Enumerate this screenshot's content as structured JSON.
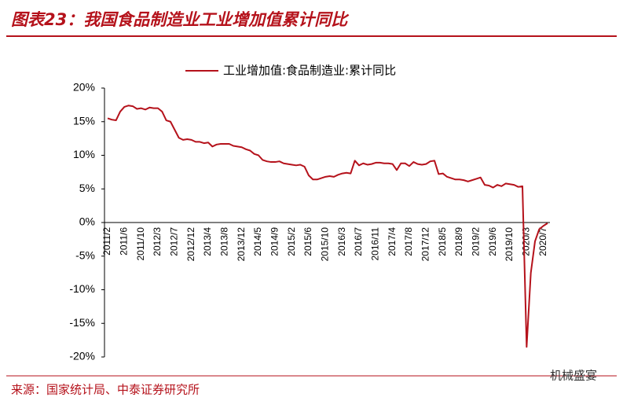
{
  "chart_data": {
    "type": "line",
    "title": "图表23：我国食品制造业工业增加值累计同比",
    "source": "来源：国家统计局、中泰证券研究所",
    "watermark": "机械盛宴",
    "categories": [
      "2011/2",
      null,
      null,
      null,
      "2011/6",
      null,
      null,
      null,
      "2011/10",
      null,
      null,
      null,
      "2012/3",
      null,
      null,
      null,
      "2012/7",
      null,
      null,
      null,
      "2012/12",
      null,
      null,
      null,
      "2013/4",
      null,
      null,
      null,
      "2013/8",
      null,
      null,
      null,
      "2013/12",
      null,
      null,
      null,
      "2014/5",
      null,
      null,
      null,
      "2014/9",
      null,
      null,
      null,
      "2015/2",
      null,
      null,
      null,
      "2015/6",
      null,
      null,
      null,
      "2015/10",
      null,
      null,
      null,
      "2016/3",
      null,
      null,
      null,
      "2016/7",
      null,
      null,
      null,
      "2016/11",
      null,
      null,
      null,
      "2017/4",
      null,
      null,
      null,
      "2017/8",
      null,
      null,
      null,
      "2017/12",
      null,
      null,
      null,
      "2018/5",
      null,
      null,
      null,
      "2018/9",
      null,
      null,
      null,
      "2019/2",
      null,
      null,
      null,
      "2019/6",
      null,
      null,
      null,
      "2019/10",
      null,
      null,
      null,
      "2020/3",
      null,
      null,
      null,
      "2020/7",
      null
    ],
    "series": [
      {
        "name": "工业增加值:食品制造业:累计同比",
        "color": "#b5121b",
        "values": [
          15.5,
          15.3,
          15.2,
          16.5,
          17.2,
          17.4,
          17.3,
          16.9,
          17.0,
          16.8,
          17.1,
          17.0,
          17.0,
          16.5,
          15.2,
          15.0,
          13.8,
          12.6,
          12.3,
          12.4,
          12.3,
          12.0,
          12.0,
          11.8,
          11.9,
          11.3,
          11.6,
          11.7,
          11.7,
          11.7,
          11.4,
          11.3,
          11.2,
          10.9,
          10.7,
          10.2,
          10.0,
          9.3,
          9.1,
          9.0,
          9.0,
          9.1,
          8.8,
          8.7,
          8.6,
          8.5,
          8.6,
          8.3,
          7.0,
          6.4,
          6.4,
          6.6,
          6.8,
          6.9,
          6.8,
          7.1,
          7.3,
          7.4,
          7.3,
          9.2,
          8.5,
          8.8,
          8.6,
          8.7,
          8.9,
          8.9,
          8.8,
          8.8,
          8.7,
          7.8,
          8.8,
          8.8,
          8.4,
          9.0,
          8.7,
          8.6,
          8.7,
          9.1,
          9.2,
          7.2,
          7.3,
          6.8,
          6.6,
          6.4,
          6.4,
          6.3,
          6.1,
          6.3,
          6.5,
          6.7,
          5.6,
          5.5,
          5.2,
          5.6,
          5.4,
          5.8,
          5.7,
          5.6,
          5.3,
          5.4,
          -18.5,
          -7.5,
          -2.8,
          -1.0,
          -0.5,
          -0.1
        ]
      }
    ],
    "ylim": [
      -20,
      20
    ],
    "yticks": [
      {
        "value": -20,
        "label": "-20%"
      },
      {
        "value": -15,
        "label": "-15%"
      },
      {
        "value": -10,
        "label": "-10%"
      },
      {
        "value": -5,
        "label": "-5%"
      },
      {
        "value": 0,
        "label": "0%"
      },
      {
        "value": 5,
        "label": "5%"
      },
      {
        "value": 10,
        "label": "10%"
      },
      {
        "value": 15,
        "label": "15%"
      },
      {
        "value": 20,
        "label": "20%"
      }
    ],
    "legend": "top"
  }
}
